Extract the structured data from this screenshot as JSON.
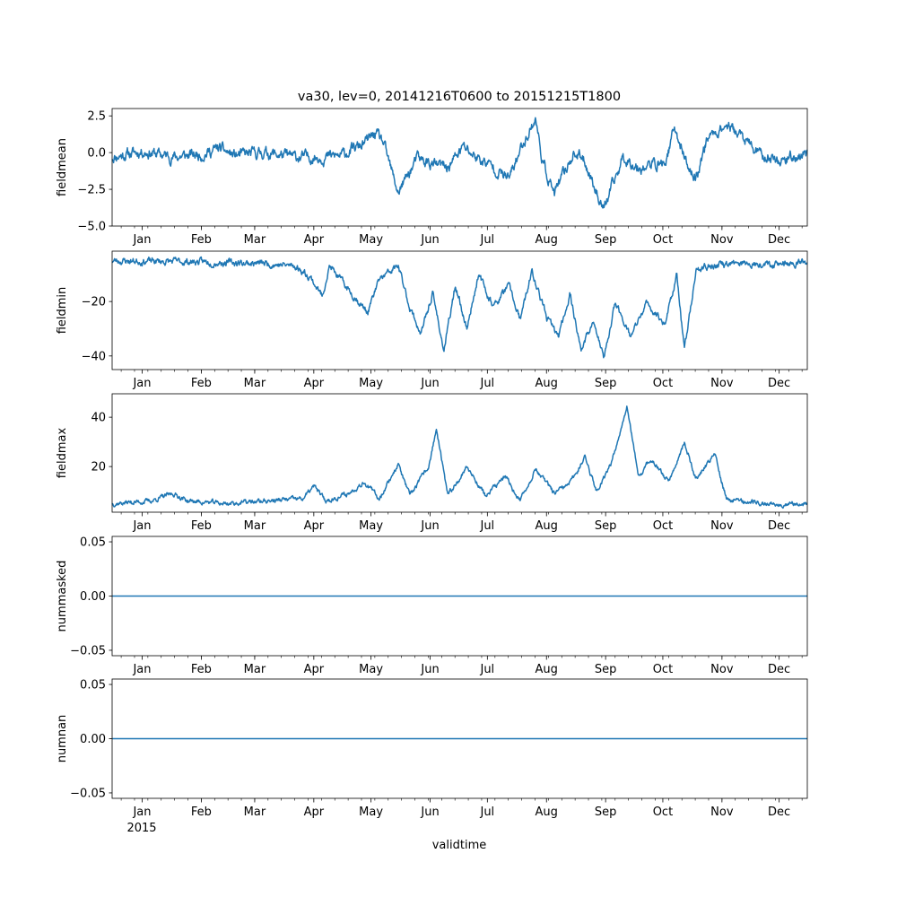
{
  "figure": {
    "title": "va30, lev=0, 20141216T0600 to 20151215T1800",
    "xlabel": "validtime",
    "year_label": "2015",
    "line_color": "#1f77b4",
    "month_labels": [
      "Jan",
      "Feb",
      "Mar",
      "Apr",
      "May",
      "Jun",
      "Jul",
      "Aug",
      "Sep",
      "Oct",
      "Nov",
      "Dec"
    ]
  },
  "chart_data": [
    {
      "type": "line",
      "name": "fieldmean",
      "ylabel": "fieldmean",
      "ylim": [
        -5,
        3
      ],
      "yticks": [
        2.5,
        0.0,
        -2.5,
        -5.0
      ],
      "ytick_labels": [
        "2.5",
        "0.0",
        "−2.5",
        "−5.0"
      ],
      "seed": 11,
      "noise": 0.55,
      "keypoints": [
        [
          0,
          -0.3
        ],
        [
          16,
          0.1
        ],
        [
          32,
          -0.3
        ],
        [
          48,
          -0.1
        ],
        [
          56,
          0.3
        ],
        [
          64,
          -0.2
        ],
        [
          80,
          0.0
        ],
        [
          96,
          -0.3
        ],
        [
          112,
          -0.3
        ],
        [
          120,
          -0.2
        ],
        [
          132,
          0.6
        ],
        [
          138,
          1.3
        ],
        [
          142,
          0.7
        ],
        [
          147,
          -1.5
        ],
        [
          150,
          -2.7
        ],
        [
          160,
          -0.4
        ],
        [
          168,
          -0.8
        ],
        [
          176,
          -1.0
        ],
        [
          184,
          0.4
        ],
        [
          192,
          -0.4
        ],
        [
          200,
          -1.0
        ],
        [
          208,
          -1.8
        ],
        [
          216,
          0.8
        ],
        [
          222,
          2.3
        ],
        [
          226,
          -0.8
        ],
        [
          232,
          -2.8
        ],
        [
          242,
          0.0
        ],
        [
          248,
          -0.6
        ],
        [
          254,
          -2.7
        ],
        [
          258,
          -3.8
        ],
        [
          268,
          -0.3
        ],
        [
          276,
          -1.0
        ],
        [
          290,
          -0.7
        ],
        [
          295,
          1.6
        ],
        [
          302,
          -1.0
        ],
        [
          306,
          -1.8
        ],
        [
          312,
          1.0
        ],
        [
          322,
          1.9
        ],
        [
          330,
          1.1
        ],
        [
          340,
          -0.2
        ],
        [
          350,
          -0.5
        ],
        [
          364,
          -0.1
        ]
      ]
    },
    {
      "type": "line",
      "name": "fieldmin",
      "ylabel": "fieldmin",
      "ylim": [
        -45,
        -1.5
      ],
      "yticks": [
        -20,
        -40
      ],
      "ytick_labels": [
        "−20",
        "−40"
      ],
      "seed": 23,
      "noise": 1.8,
      "keypoints": [
        [
          0,
          -5
        ],
        [
          50,
          -5.5
        ],
        [
          80,
          -6
        ],
        [
          96,
          -7
        ],
        [
          104,
          -11
        ],
        [
          110,
          -18
        ],
        [
          114,
          -7
        ],
        [
          122,
          -14
        ],
        [
          134,
          -24
        ],
        [
          140,
          -12
        ],
        [
          150,
          -7
        ],
        [
          156,
          -22
        ],
        [
          162,
          -32
        ],
        [
          168,
          -17
        ],
        [
          174,
          -38
        ],
        [
          180,
          -14
        ],
        [
          186,
          -30
        ],
        [
          192,
          -10
        ],
        [
          200,
          -22
        ],
        [
          208,
          -14
        ],
        [
          214,
          -27
        ],
        [
          220,
          -9
        ],
        [
          228,
          -26
        ],
        [
          234,
          -33
        ],
        [
          240,
          -17
        ],
        [
          246,
          -38
        ],
        [
          252,
          -27
        ],
        [
          258,
          -41
        ],
        [
          264,
          -20
        ],
        [
          272,
          -33
        ],
        [
          280,
          -21
        ],
        [
          290,
          -28
        ],
        [
          296,
          -10
        ],
        [
          300,
          -38
        ],
        [
          306,
          -9
        ],
        [
          312,
          -7
        ],
        [
          330,
          -6
        ],
        [
          364,
          -6
        ]
      ]
    },
    {
      "type": "line",
      "name": "fieldmax",
      "ylabel": "fieldmax",
      "ylim": [
        1.5,
        49.5
      ],
      "yticks": [
        40,
        20
      ],
      "ytick_labels": [
        "40",
        "20"
      ],
      "seed": 37,
      "noise": 1.4,
      "keypoints": [
        [
          0,
          5
        ],
        [
          20,
          6
        ],
        [
          32,
          9
        ],
        [
          40,
          6
        ],
        [
          60,
          5
        ],
        [
          80,
          6
        ],
        [
          100,
          7
        ],
        [
          106,
          12
        ],
        [
          112,
          6
        ],
        [
          124,
          9
        ],
        [
          132,
          14
        ],
        [
          140,
          7
        ],
        [
          150,
          21
        ],
        [
          156,
          8
        ],
        [
          166,
          20
        ],
        [
          170,
          35
        ],
        [
          176,
          8
        ],
        [
          186,
          20
        ],
        [
          196,
          8
        ],
        [
          206,
          16
        ],
        [
          214,
          6
        ],
        [
          222,
          19
        ],
        [
          232,
          9
        ],
        [
          240,
          13
        ],
        [
          248,
          24
        ],
        [
          254,
          10
        ],
        [
          262,
          22
        ],
        [
          270,
          45
        ],
        [
          276,
          15
        ],
        [
          282,
          23
        ],
        [
          292,
          14
        ],
        [
          300,
          30
        ],
        [
          306,
          15
        ],
        [
          316,
          25
        ],
        [
          322,
          7
        ],
        [
          340,
          5
        ],
        [
          364,
          5
        ]
      ]
    },
    {
      "type": "line",
      "name": "nummasked",
      "ylabel": "nummasked",
      "ylim": [
        -0.055,
        0.055
      ],
      "yticks": [
        0.05,
        0.0,
        -0.05
      ],
      "ytick_labels": [
        "0.05",
        "0.00",
        "−0.05"
      ],
      "constant": 0.0
    },
    {
      "type": "line",
      "name": "numnan",
      "ylabel": "numnan",
      "ylim": [
        -0.055,
        0.055
      ],
      "yticks": [
        0.05,
        0.0,
        -0.05
      ],
      "ytick_labels": [
        "0.05",
        "0.00",
        "−0.05"
      ],
      "constant": 0.0
    }
  ]
}
